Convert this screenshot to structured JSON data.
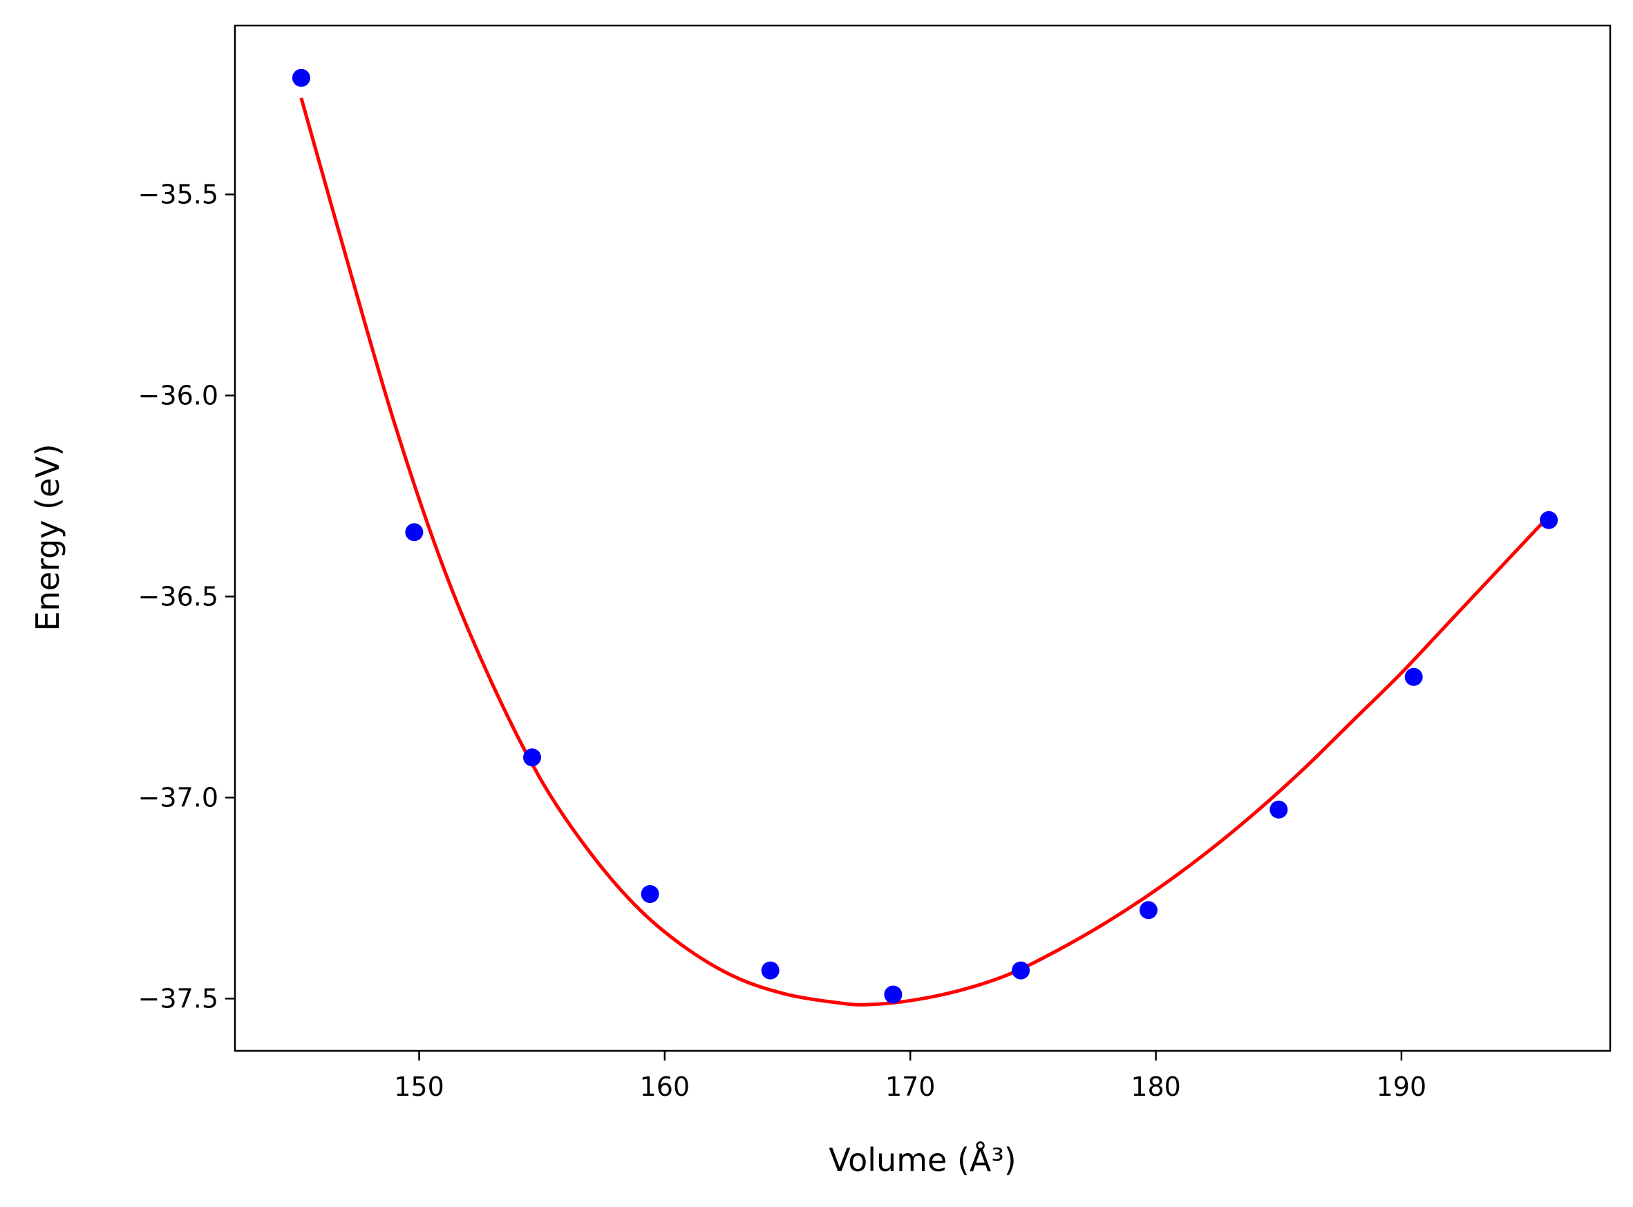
{
  "chart_data": {
    "type": "scatter",
    "xlabel": "Volume (Å³)",
    "ylabel": "Energy (eV)",
    "xlim": [
      142.5,
      198.5
    ],
    "ylim": [
      -37.63,
      -35.08
    ],
    "xticks": [
      150,
      160,
      170,
      180,
      190
    ],
    "yticks": [
      -35.5,
      -36.0,
      -36.5,
      -37.0,
      -37.5
    ],
    "xtick_labels": [
      "150",
      "160",
      "170",
      "180",
      "190"
    ],
    "ytick_labels": [
      "−35.5",
      "−36.0",
      "−36.5",
      "−37.0",
      "−37.5"
    ],
    "grid": false,
    "series": [
      {
        "kind": "points",
        "color": "#0000ff",
        "x": [
          145.2,
          149.8,
          154.6,
          159.4,
          164.3,
          169.3,
          174.5,
          179.7,
          185.0,
          190.5,
          196.0
        ],
        "y": [
          -35.21,
          -36.34,
          -36.9,
          -37.24,
          -37.43,
          -37.49,
          -37.43,
          -37.28,
          -37.03,
          -36.7,
          -36.31
        ]
      },
      {
        "kind": "fit-curve",
        "color": "#ff0000",
        "x": [
          145.2,
          147.0,
          149.0,
          151.0,
          153.0,
          155.0,
          157.0,
          159.0,
          161.0,
          163.0,
          165.0,
          167.0,
          168.2,
          170.0,
          172.0,
          174.0,
          176.0,
          178.0,
          180.0,
          182.0,
          184.0,
          186.0,
          188.0,
          190.0,
          192.0,
          194.0,
          196.0
        ],
        "y": [
          -35.26,
          -35.65,
          -36.07,
          -36.43,
          -36.72,
          -36.96,
          -37.14,
          -37.28,
          -37.38,
          -37.45,
          -37.49,
          -37.51,
          -37.515,
          -37.505,
          -37.48,
          -37.44,
          -37.38,
          -37.31,
          -37.23,
          -37.14,
          -37.04,
          -36.93,
          -36.81,
          -36.69,
          -36.56,
          -36.43,
          -36.3
        ]
      }
    ]
  }
}
